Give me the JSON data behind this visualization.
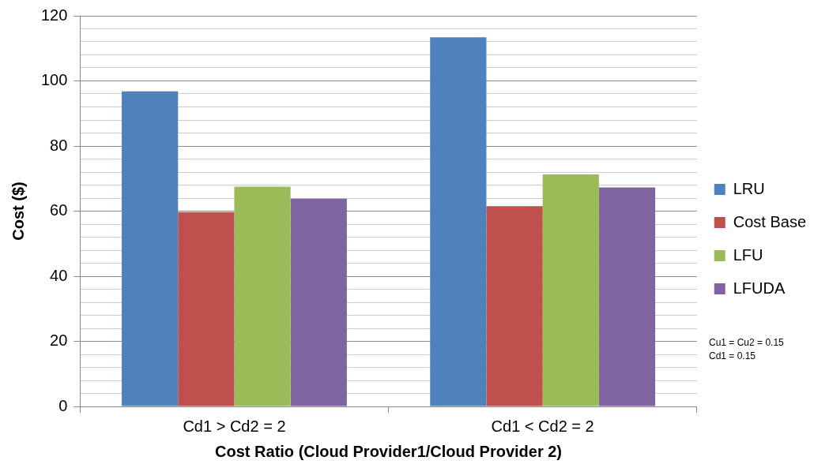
{
  "chart_data": {
    "type": "bar",
    "xlabel": "Cost Ratio (Cloud Provider1/Cloud Provider 2)",
    "ylabel": "Cost ($)",
    "categories": [
      "Cd1 > Cd2 = 2",
      "Cd1 < Cd2 = 2"
    ],
    "series": [
      {
        "name": "LRU",
        "color": "#4f81bd",
        "values": [
          96.8,
          113.4
        ]
      },
      {
        "name": "Cost Base",
        "color": "#c0504d",
        "values": [
          59.7,
          61.5
        ]
      },
      {
        "name": "LFU",
        "color": "#9bbb59",
        "values": [
          67.5,
          71.3
        ]
      },
      {
        "name": "LFUDA",
        "color": "#8064a2",
        "values": [
          63.8,
          67.3
        ]
      }
    ],
    "ylim": [
      0,
      120
    ],
    "yticks": [
      0,
      {
        "value": 4,
        "label": null
      },
      {
        "value": 8,
        "label": null
      },
      {
        "value": 12,
        "label": null
      },
      {
        "value": 16,
        "label": null
      },
      20,
      {
        "value": 24,
        "label": null
      },
      {
        "value": 28,
        "label": null
      },
      {
        "value": 32,
        "label": null
      },
      {
        "value": 36,
        "label": null
      },
      40,
      {
        "value": 44,
        "label": null
      },
      {
        "value": 48,
        "label": null
      },
      {
        "value": 52,
        "label": null
      },
      {
        "value": 56,
        "label": null
      },
      60,
      {
        "value": 64,
        "label": null
      },
      {
        "value": 68,
        "label": null
      },
      {
        "value": 72,
        "label": null
      },
      {
        "value": 76,
        "label": null
      },
      80,
      {
        "value": 84,
        "label": null
      },
      {
        "value": 88,
        "label": null
      },
      {
        "value": 92,
        "label": null
      },
      {
        "value": 96,
        "label": null
      },
      100,
      {
        "value": 104,
        "label": null
      },
      {
        "value": 108,
        "label": null
      },
      {
        "value": 112,
        "label": null
      },
      {
        "value": 116,
        "label": null
      },
      120
    ],
    "grid": "y",
    "legend": "right",
    "annotations": [
      "Cu1 = Cu2 = 0.15",
      "Cd1 = 0.15"
    ]
  }
}
